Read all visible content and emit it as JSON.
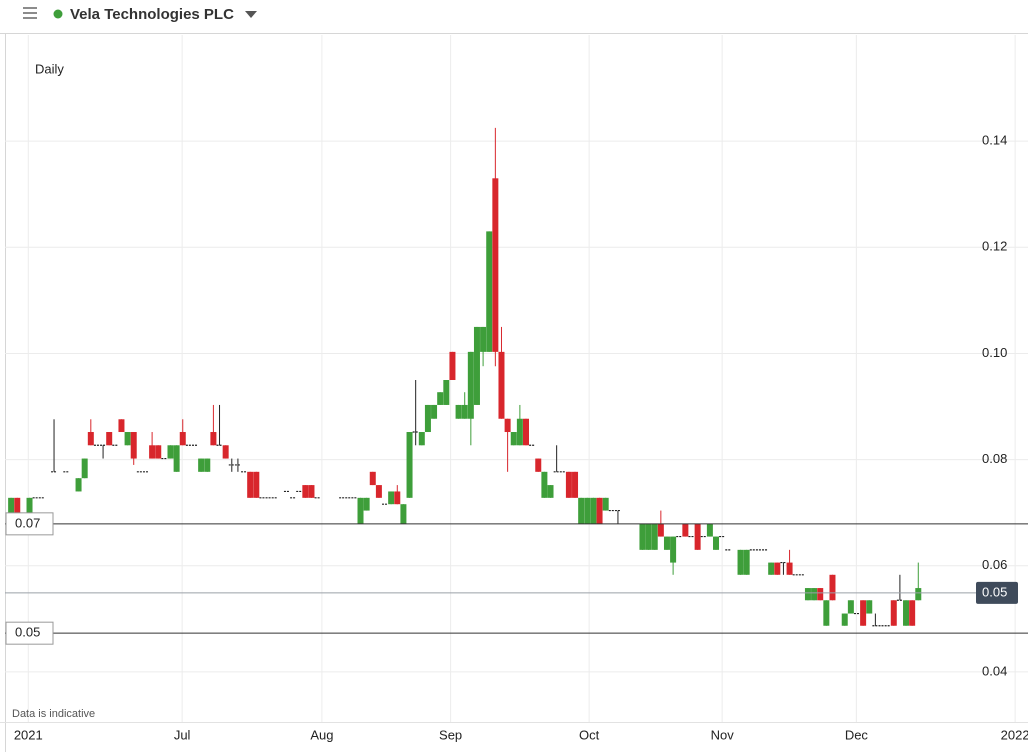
{
  "chart_data": {
    "type": "candlestick",
    "title": "Vela Technologies PLC",
    "interval": "Daily",
    "note": "Data is indicative",
    "up_color": "#3e9e3a",
    "down_color": "#d8262c",
    "flat_color": "#222222",
    "grid": true,
    "xlim": [
      0,
      166.9
    ],
    "xticks": [
      {
        "value": 3.8,
        "label": "2021"
      },
      {
        "value": 28.9,
        "label": "Jul"
      },
      {
        "value": 51.7,
        "label": "Aug"
      },
      {
        "value": 72.7,
        "label": "Sep"
      },
      {
        "value": 95.3,
        "label": "Oct"
      },
      {
        "value": 117.0,
        "label": "Nov"
      },
      {
        "value": 138.9,
        "label": "Dec"
      },
      {
        "value": 164.8,
        "label": "2022"
      }
    ],
    "ylim": [
      0.03,
      0.16
    ],
    "yticks": [
      0.04,
      0.06,
      0.08,
      {
        "value": 0.1,
        "label": "0.10"
      },
      0.12,
      0.14
    ],
    "price_lines": [
      {
        "value": 0.0679,
        "label": "0.07"
      },
      {
        "value": 0.0473,
        "label": "0.05"
      }
    ],
    "last_price": {
      "value": 0.0549,
      "label": "0.05"
    },
    "x": [
      1,
      2,
      4,
      5,
      6,
      8,
      10,
      12,
      13,
      14,
      15,
      16,
      17,
      18,
      19,
      20,
      21,
      22,
      23,
      24,
      25,
      26,
      27,
      28,
      29,
      30,
      31,
      32,
      33,
      34,
      35,
      36,
      37,
      38,
      39,
      40,
      41,
      42,
      43,
      44,
      46,
      47,
      48,
      49,
      50,
      51,
      55,
      56,
      57,
      58,
      59,
      60,
      61,
      62,
      63,
      64,
      65,
      66,
      67,
      68,
      69,
      70,
      71,
      72,
      73,
      74,
      75,
      76,
      77,
      78,
      79,
      80,
      81,
      82,
      83,
      84,
      85,
      86,
      87,
      88,
      89,
      90,
      91,
      92,
      93,
      94,
      95,
      96,
      97,
      98,
      99,
      100,
      104,
      105,
      106,
      107,
      108,
      109,
      110,
      111,
      112,
      113,
      114,
      115,
      116,
      117,
      118,
      120,
      121,
      122,
      123,
      124,
      125,
      126,
      127,
      128,
      129,
      130,
      131,
      132,
      133,
      134,
      135,
      137,
      138,
      139,
      140,
      141,
      142,
      143,
      144,
      145,
      146,
      147,
      148,
      149
    ],
    "ohlc": [
      [
        0.07,
        0.0728,
        0.07,
        0.0728
      ],
      [
        0.0728,
        0.0728,
        0.07,
        0.07
      ],
      [
        0.07,
        0.0728,
        0.07,
        0.0728
      ],
      [
        0.0728,
        0.0728,
        0.0728,
        0.0728
      ],
      [
        0.0728,
        0.0728,
        0.0728,
        0.0728
      ],
      [
        0.0777,
        0.0876,
        0.0777,
        0.0777
      ],
      [
        0.0777,
        0.0777,
        0.0777,
        0.0777
      ],
      [
        0.074,
        0.0765,
        0.074,
        0.0765
      ],
      [
        0.0765,
        0.0802,
        0.0765,
        0.0802
      ],
      [
        0.0852,
        0.0876,
        0.0827,
        0.0827
      ],
      [
        0.0827,
        0.0827,
        0.0827,
        0.0827
      ],
      [
        0.0827,
        0.0827,
        0.0802,
        0.0827
      ],
      [
        0.0852,
        0.0852,
        0.0827,
        0.0827
      ],
      [
        0.0827,
        0.0827,
        0.0827,
        0.0827
      ],
      [
        0.0876,
        0.0876,
        0.0852,
        0.0852
      ],
      [
        0.0827,
        0.0852,
        0.0827,
        0.0852
      ],
      [
        0.0852,
        0.0852,
        0.079,
        0.0802
      ],
      [
        0.0777,
        0.0777,
        0.0777,
        0.0777
      ],
      [
        0.0777,
        0.0777,
        0.0777,
        0.0777
      ],
      [
        0.0827,
        0.0852,
        0.0802,
        0.0802
      ],
      [
        0.0827,
        0.0827,
        0.0802,
        0.0802
      ],
      [
        0.0802,
        0.0802,
        0.0802,
        0.0802
      ],
      [
        0.0802,
        0.0827,
        0.0802,
        0.0827
      ],
      [
        0.0777,
        0.0827,
        0.0777,
        0.0827
      ],
      [
        0.0852,
        0.0876,
        0.0827,
        0.0827
      ],
      [
        0.0827,
        0.0827,
        0.0827,
        0.0827
      ],
      [
        0.0827,
        0.0827,
        0.0827,
        0.0827
      ],
      [
        0.0777,
        0.0802,
        0.0777,
        0.0802
      ],
      [
        0.0777,
        0.0802,
        0.0777,
        0.0802
      ],
      [
        0.0852,
        0.0903,
        0.0827,
        0.0827
      ],
      [
        0.0827,
        0.0903,
        0.0827,
        0.0827
      ],
      [
        0.0827,
        0.0827,
        0.0802,
        0.0802
      ],
      [
        0.079,
        0.0802,
        0.0777,
        0.079
      ],
      [
        0.079,
        0.0802,
        0.0777,
        0.079
      ],
      [
        0.0777,
        0.0777,
        0.0777,
        0.0777
      ],
      [
        0.0777,
        0.0777,
        0.0728,
        0.0728
      ],
      [
        0.0777,
        0.0777,
        0.0728,
        0.0728
      ],
      [
        0.0728,
        0.0728,
        0.0728,
        0.0728
      ],
      [
        0.0728,
        0.0728,
        0.0728,
        0.0728
      ],
      [
        0.0728,
        0.0728,
        0.0728,
        0.0728
      ],
      [
        0.074,
        0.074,
        0.074,
        0.074
      ],
      [
        0.0728,
        0.0728,
        0.0728,
        0.0728
      ],
      [
        0.074,
        0.074,
        0.074,
        0.074
      ],
      [
        0.0752,
        0.0752,
        0.0728,
        0.0728
      ],
      [
        0.0752,
        0.0752,
        0.0728,
        0.0728
      ],
      [
        0.0728,
        0.0728,
        0.0728,
        0.0728
      ],
      [
        0.0728,
        0.0728,
        0.0728,
        0.0728
      ],
      [
        0.0728,
        0.0728,
        0.0728,
        0.0728
      ],
      [
        0.0728,
        0.0728,
        0.0728,
        0.0728
      ],
      [
        0.0679,
        0.0728,
        0.0679,
        0.0728
      ],
      [
        0.0704,
        0.0728,
        0.0704,
        0.0728
      ],
      [
        0.0777,
        0.0777,
        0.0752,
        0.0752
      ],
      [
        0.0752,
        0.0752,
        0.0728,
        0.0728
      ],
      [
        0.0716,
        0.0716,
        0.0716,
        0.0716
      ],
      [
        0.0716,
        0.074,
        0.0716,
        0.074
      ],
      [
        0.074,
        0.0752,
        0.0716,
        0.0716
      ],
      [
        0.0679,
        0.0716,
        0.0679,
        0.0716
      ],
      [
        0.0728,
        0.0852,
        0.0728,
        0.0852
      ],
      [
        0.0852,
        0.095,
        0.0827,
        0.0852
      ],
      [
        0.0827,
        0.0852,
        0.0827,
        0.0852
      ],
      [
        0.0852,
        0.0903,
        0.0852,
        0.0903
      ],
      [
        0.0877,
        0.0903,
        0.0877,
        0.0903
      ],
      [
        0.0903,
        0.0927,
        0.0903,
        0.0927
      ],
      [
        0.0903,
        0.095,
        0.0903,
        0.095
      ],
      [
        0.1003,
        0.1003,
        0.095,
        0.095
      ],
      [
        0.0877,
        0.0903,
        0.0877,
        0.0903
      ],
      [
        0.0877,
        0.0927,
        0.0877,
        0.0903
      ],
      [
        0.0877,
        0.1003,
        0.0827,
        0.1003
      ],
      [
        0.0903,
        0.105,
        0.0903,
        0.105
      ],
      [
        0.1003,
        0.105,
        0.0976,
        0.105
      ],
      [
        0.1003,
        0.123,
        0.1003,
        0.123
      ],
      [
        0.133,
        0.1425,
        0.0976,
        0.1003
      ],
      [
        0.1003,
        0.105,
        0.0877,
        0.0877
      ],
      [
        0.0877,
        0.0877,
        0.0777,
        0.0852
      ],
      [
        0.0827,
        0.0852,
        0.0827,
        0.0852
      ],
      [
        0.0827,
        0.0903,
        0.0827,
        0.0877
      ],
      [
        0.0877,
        0.0877,
        0.0827,
        0.0827
      ],
      [
        0.0827,
        0.0827,
        0.0827,
        0.0827
      ],
      [
        0.0802,
        0.0802,
        0.0777,
        0.0777
      ],
      [
        0.0728,
        0.0777,
        0.0728,
        0.0777
      ],
      [
        0.0728,
        0.0752,
        0.0728,
        0.0752
      ],
      [
        0.0777,
        0.0827,
        0.0777,
        0.0777
      ],
      [
        0.0777,
        0.0777,
        0.0777,
        0.0777
      ],
      [
        0.0777,
        0.0777,
        0.0728,
        0.0728
      ],
      [
        0.0777,
        0.0777,
        0.0728,
        0.0728
      ],
      [
        0.0679,
        0.0728,
        0.0679,
        0.0728
      ],
      [
        0.0679,
        0.0728,
        0.0679,
        0.0728
      ],
      [
        0.0679,
        0.0728,
        0.0679,
        0.0728
      ],
      [
        0.0728,
        0.0728,
        0.0679,
        0.0679
      ],
      [
        0.0704,
        0.0728,
        0.0704,
        0.0728
      ],
      [
        0.0704,
        0.0704,
        0.0704,
        0.0704
      ],
      [
        0.0704,
        0.0704,
        0.0679,
        0.0704
      ],
      [
        0.063,
        0.0679,
        0.063,
        0.0679
      ],
      [
        0.063,
        0.0679,
        0.063,
        0.0679
      ],
      [
        0.063,
        0.0679,
        0.063,
        0.0679
      ],
      [
        0.0679,
        0.0704,
        0.0655,
        0.0655
      ],
      [
        0.063,
        0.0655,
        0.063,
        0.0655
      ],
      [
        0.0606,
        0.0655,
        0.0583,
        0.0655
      ],
      [
        0.0655,
        0.0655,
        0.0655,
        0.0655
      ],
      [
        0.0679,
        0.0679,
        0.0655,
        0.0655
      ],
      [
        0.0655,
        0.0655,
        0.0655,
        0.0655
      ],
      [
        0.0679,
        0.0679,
        0.063,
        0.063
      ],
      [
        0.0655,
        0.0655,
        0.0655,
        0.0655
      ],
      [
        0.0655,
        0.0679,
        0.0655,
        0.0679
      ],
      [
        0.063,
        0.0655,
        0.063,
        0.0655
      ],
      [
        0.0655,
        0.0655,
        0.0655,
        0.0655
      ],
      [
        0.063,
        0.063,
        0.063,
        0.063
      ],
      [
        0.0583,
        0.063,
        0.0583,
        0.063
      ],
      [
        0.0583,
        0.063,
        0.0583,
        0.063
      ],
      [
        0.063,
        0.063,
        0.063,
        0.063
      ],
      [
        0.063,
        0.063,
        0.063,
        0.063
      ],
      [
        0.063,
        0.063,
        0.063,
        0.063
      ],
      [
        0.0583,
        0.0606,
        0.0583,
        0.0606
      ],
      [
        0.0606,
        0.0606,
        0.0583,
        0.0583
      ],
      [
        0.0606,
        0.0606,
        0.0583,
        0.0606
      ],
      [
        0.0606,
        0.063,
        0.0583,
        0.0583
      ],
      [
        0.0583,
        0.0583,
        0.0583,
        0.0583
      ],
      [
        0.0583,
        0.0583,
        0.0583,
        0.0583
      ],
      [
        0.0535,
        0.0558,
        0.0535,
        0.0558
      ],
      [
        0.0535,
        0.0558,
        0.0535,
        0.0558
      ],
      [
        0.0558,
        0.0558,
        0.0535,
        0.0535
      ],
      [
        0.0487,
        0.0535,
        0.0487,
        0.0535
      ],
      [
        0.0583,
        0.0583,
        0.0535,
        0.0535
      ],
      [
        0.0487,
        0.051,
        0.0487,
        0.051
      ],
      [
        0.051,
        0.0535,
        0.051,
        0.0535
      ],
      [
        0.051,
        0.051,
        0.051,
        0.051
      ],
      [
        0.0535,
        0.0535,
        0.0487,
        0.0487
      ],
      [
        0.051,
        0.0535,
        0.051,
        0.0535
      ],
      [
        0.0487,
        0.051,
        0.0487,
        0.0487
      ],
      [
        0.0487,
        0.0487,
        0.0487,
        0.0487
      ],
      [
        0.0487,
        0.0487,
        0.0487,
        0.0487
      ],
      [
        0.0535,
        0.0535,
        0.0487,
        0.0487
      ],
      [
        0.0535,
        0.0583,
        0.0535,
        0.0535
      ],
      [
        0.0487,
        0.0535,
        0.0487,
        0.0535
      ],
      [
        0.0535,
        0.0535,
        0.0487,
        0.0487
      ],
      [
        0.0535,
        0.0606,
        0.0535,
        0.0558
      ]
    ]
  }
}
